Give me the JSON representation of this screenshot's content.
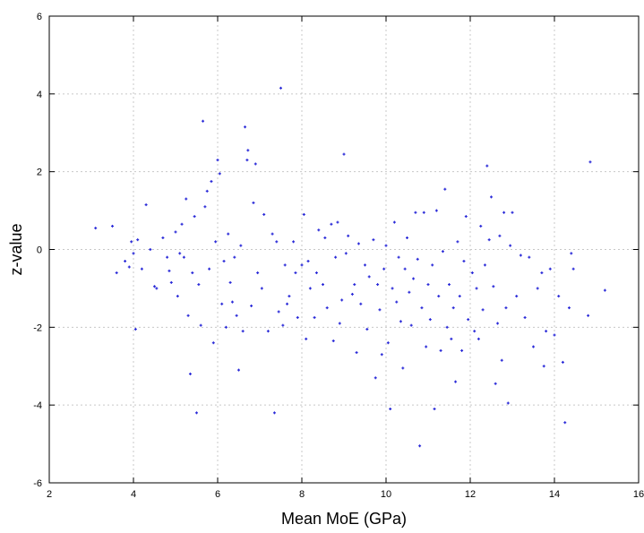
{
  "chart_data": {
    "type": "scatter",
    "title": "",
    "xlabel": "Mean MoE (GPa)",
    "ylabel": "z-value",
    "xlim": [
      2,
      16
    ],
    "ylim": [
      -6,
      6
    ],
    "xticks": [
      2,
      4,
      6,
      8,
      10,
      12,
      14,
      16
    ],
    "yticks": [
      -6,
      -4,
      -2,
      0,
      2,
      4,
      6
    ],
    "grid": true,
    "point_color": "#2a2ad8",
    "points": [
      [
        3.1,
        0.55
      ],
      [
        3.5,
        0.6
      ],
      [
        3.6,
        -0.6
      ],
      [
        3.8,
        -0.3
      ],
      [
        3.9,
        -0.45
      ],
      [
        3.95,
        0.2
      ],
      [
        4.0,
        -0.1
      ],
      [
        4.05,
        -2.05
      ],
      [
        4.1,
        0.25
      ],
      [
        4.2,
        -0.5
      ],
      [
        4.3,
        1.15
      ],
      [
        4.4,
        0.0
      ],
      [
        4.5,
        -0.95
      ],
      [
        4.55,
        -1.0
      ],
      [
        4.7,
        0.3
      ],
      [
        4.8,
        -0.2
      ],
      [
        4.85,
        -0.55
      ],
      [
        4.9,
        -0.85
      ],
      [
        5.0,
        0.45
      ],
      [
        5.05,
        -1.2
      ],
      [
        5.1,
        -0.1
      ],
      [
        5.15,
        0.65
      ],
      [
        5.2,
        -0.2
      ],
      [
        5.25,
        1.3
      ],
      [
        5.3,
        -1.7
      ],
      [
        5.35,
        -3.2
      ],
      [
        5.4,
        -0.6
      ],
      [
        5.45,
        0.85
      ],
      [
        5.5,
        -4.2
      ],
      [
        5.55,
        -0.9
      ],
      [
        5.6,
        -1.95
      ],
      [
        5.65,
        3.3
      ],
      [
        5.7,
        1.1
      ],
      [
        5.75,
        1.5
      ],
      [
        5.8,
        -0.5
      ],
      [
        5.85,
        1.75
      ],
      [
        5.9,
        -2.4
      ],
      [
        5.95,
        0.2
      ],
      [
        6.0,
        2.3
      ],
      [
        6.05,
        1.95
      ],
      [
        6.1,
        -1.4
      ],
      [
        6.15,
        -0.3
      ],
      [
        6.2,
        -2.0
      ],
      [
        6.25,
        0.4
      ],
      [
        6.3,
        -0.85
      ],
      [
        6.35,
        -1.35
      ],
      [
        6.4,
        -0.2
      ],
      [
        6.45,
        -1.7
      ],
      [
        6.5,
        -3.1
      ],
      [
        6.55,
        0.1
      ],
      [
        6.6,
        -2.1
      ],
      [
        6.65,
        3.15
      ],
      [
        6.7,
        2.3
      ],
      [
        6.72,
        2.55
      ],
      [
        6.8,
        -1.45
      ],
      [
        6.85,
        1.2
      ],
      [
        6.9,
        2.2
      ],
      [
        6.95,
        -0.6
      ],
      [
        7.05,
        -1.0
      ],
      [
        7.1,
        0.9
      ],
      [
        7.2,
        -2.1
      ],
      [
        7.3,
        0.4
      ],
      [
        7.35,
        -4.2
      ],
      [
        7.4,
        0.2
      ],
      [
        7.45,
        -1.6
      ],
      [
        7.5,
        4.15
      ],
      [
        7.55,
        -1.95
      ],
      [
        7.6,
        -0.4
      ],
      [
        7.65,
        -1.4
      ],
      [
        7.7,
        -1.2
      ],
      [
        7.8,
        0.2
      ],
      [
        7.85,
        -0.6
      ],
      [
        7.9,
        -1.75
      ],
      [
        8.0,
        -0.4
      ],
      [
        8.05,
        0.9
      ],
      [
        8.1,
        -2.3
      ],
      [
        8.15,
        -0.3
      ],
      [
        8.2,
        -1.0
      ],
      [
        8.3,
        -1.75
      ],
      [
        8.35,
        -0.6
      ],
      [
        8.4,
        0.5
      ],
      [
        8.5,
        -0.9
      ],
      [
        8.55,
        0.3
      ],
      [
        8.6,
        -1.5
      ],
      [
        8.7,
        0.65
      ],
      [
        8.75,
        -2.35
      ],
      [
        8.8,
        -0.2
      ],
      [
        8.85,
        0.7
      ],
      [
        8.9,
        -1.9
      ],
      [
        8.95,
        -1.3
      ],
      [
        9.0,
        2.45
      ],
      [
        9.05,
        -0.1
      ],
      [
        9.1,
        0.35
      ],
      [
        9.2,
        -1.15
      ],
      [
        9.25,
        -0.9
      ],
      [
        9.3,
        -2.65
      ],
      [
        9.35,
        0.15
      ],
      [
        9.4,
        -1.4
      ],
      [
        9.5,
        -0.4
      ],
      [
        9.55,
        -2.05
      ],
      [
        9.6,
        -0.7
      ],
      [
        9.7,
        0.25
      ],
      [
        9.75,
        -3.3
      ],
      [
        9.8,
        -0.9
      ],
      [
        9.85,
        -1.55
      ],
      [
        9.9,
        -2.7
      ],
      [
        9.95,
        -0.5
      ],
      [
        10.0,
        0.1
      ],
      [
        10.05,
        -2.4
      ],
      [
        10.1,
        -4.1
      ],
      [
        10.15,
        -1.0
      ],
      [
        10.2,
        0.7
      ],
      [
        10.25,
        -1.35
      ],
      [
        10.3,
        -0.2
      ],
      [
        10.35,
        -1.85
      ],
      [
        10.4,
        -3.05
      ],
      [
        10.45,
        -0.5
      ],
      [
        10.5,
        0.3
      ],
      [
        10.55,
        -1.1
      ],
      [
        10.6,
        -1.95
      ],
      [
        10.65,
        -0.75
      ],
      [
        10.7,
        0.95
      ],
      [
        10.75,
        -0.25
      ],
      [
        10.8,
        -5.05
      ],
      [
        10.85,
        -1.5
      ],
      [
        10.9,
        0.95
      ],
      [
        10.95,
        -2.5
      ],
      [
        11.0,
        -0.9
      ],
      [
        11.05,
        -1.8
      ],
      [
        11.1,
        -0.4
      ],
      [
        11.15,
        -4.1
      ],
      [
        11.2,
        1.0
      ],
      [
        11.25,
        -1.2
      ],
      [
        11.3,
        -2.6
      ],
      [
        11.35,
        -0.05
      ],
      [
        11.4,
        1.55
      ],
      [
        11.45,
        -2.0
      ],
      [
        11.5,
        -0.9
      ],
      [
        11.55,
        -2.3
      ],
      [
        11.6,
        -1.5
      ],
      [
        11.65,
        -3.4
      ],
      [
        11.7,
        0.2
      ],
      [
        11.75,
        -1.2
      ],
      [
        11.8,
        -2.6
      ],
      [
        11.85,
        -0.3
      ],
      [
        11.9,
        0.85
      ],
      [
        11.95,
        -1.8
      ],
      [
        12.05,
        -0.6
      ],
      [
        12.1,
        -2.1
      ],
      [
        12.15,
        -1.0
      ],
      [
        12.2,
        -2.3
      ],
      [
        12.25,
        0.6
      ],
      [
        12.3,
        -1.55
      ],
      [
        12.35,
        -0.4
      ],
      [
        12.4,
        2.15
      ],
      [
        12.45,
        0.25
      ],
      [
        12.5,
        1.35
      ],
      [
        12.55,
        -0.95
      ],
      [
        12.6,
        -3.45
      ],
      [
        12.65,
        -1.9
      ],
      [
        12.7,
        0.35
      ],
      [
        12.75,
        -2.85
      ],
      [
        12.8,
        0.95
      ],
      [
        12.85,
        -1.5
      ],
      [
        12.9,
        -3.95
      ],
      [
        12.95,
        0.1
      ],
      [
        13.0,
        0.95
      ],
      [
        13.1,
        -1.2
      ],
      [
        13.2,
        -0.15
      ],
      [
        13.3,
        -1.75
      ],
      [
        13.4,
        -0.2
      ],
      [
        13.5,
        -2.5
      ],
      [
        13.6,
        -1.0
      ],
      [
        13.7,
        -0.6
      ],
      [
        13.75,
        -3.0
      ],
      [
        13.8,
        -2.1
      ],
      [
        13.9,
        -0.5
      ],
      [
        14.0,
        -2.2
      ],
      [
        14.1,
        -1.2
      ],
      [
        14.2,
        -2.9
      ],
      [
        14.25,
        -4.45
      ],
      [
        14.35,
        -1.5
      ],
      [
        14.4,
        -0.1
      ],
      [
        14.45,
        -0.5
      ],
      [
        14.8,
        -1.7
      ],
      [
        14.85,
        2.25
      ],
      [
        15.2,
        -1.05
      ]
    ]
  }
}
